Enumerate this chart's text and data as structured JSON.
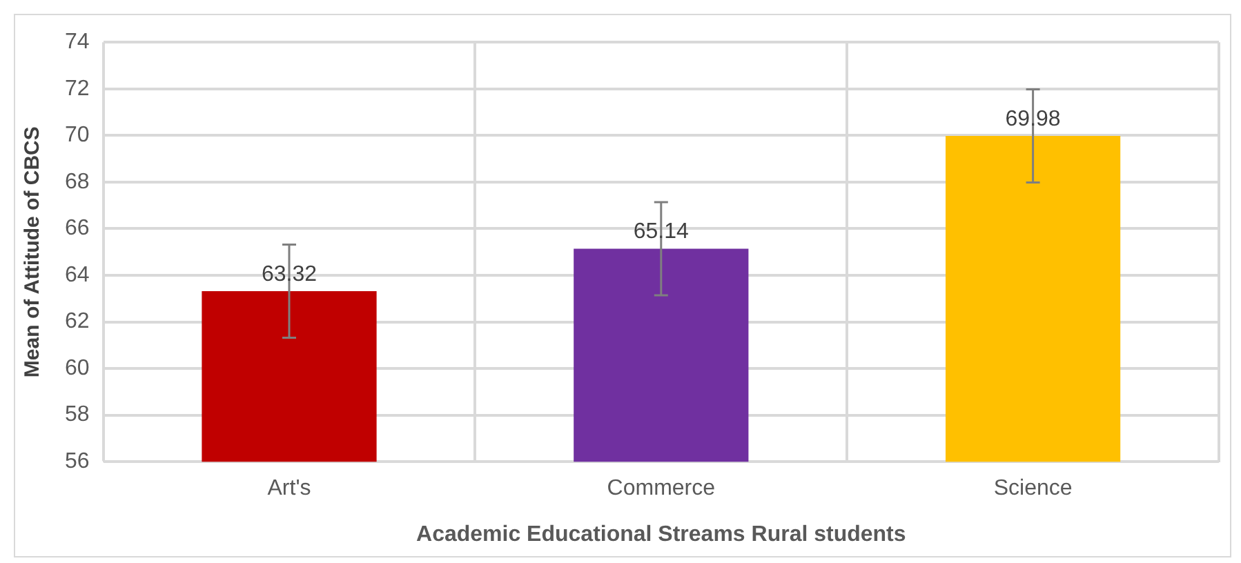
{
  "chart_data": {
    "type": "bar",
    "xlabel": "Academic Educational Streams Rural students",
    "ylabel": "Mean of Attitude of CBCS",
    "categories": [
      "Art's",
      "Commerce",
      "Science"
    ],
    "values": [
      63.32,
      65.14,
      69.98
    ],
    "colors": [
      "#c00000",
      "#7030a0",
      "#ffc000"
    ],
    "errors": [
      2,
      2,
      2
    ],
    "ylim": [
      56,
      74
    ],
    "yticks": [
      56,
      58,
      60,
      62,
      64,
      66,
      68,
      70,
      72,
      74
    ],
    "grid": true,
    "data_labels": true
  }
}
